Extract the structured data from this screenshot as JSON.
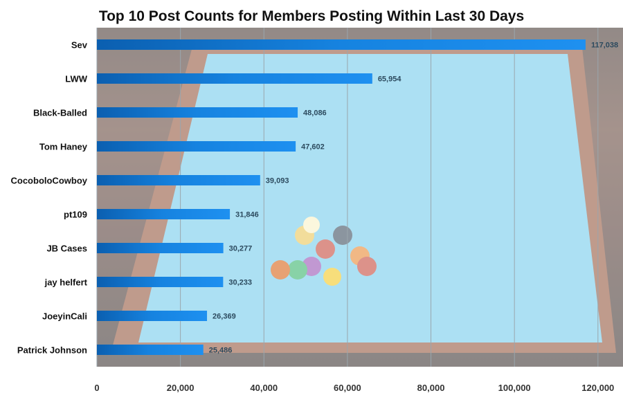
{
  "chart_data": {
    "type": "bar",
    "orientation": "horizontal",
    "title": "Top 10 Post Counts for Members Posting Within Last 30 Days",
    "categories": [
      "Sev",
      "LWW",
      "Black-Balled",
      "Tom Haney",
      "CocoboloCowboy",
      "pt109",
      "JB Cases",
      "jay helfert",
      "JoeyinCali",
      "Patrick Johnson"
    ],
    "values": [
      117038,
      65954,
      48086,
      47602,
      39093,
      31846,
      30277,
      30233,
      26369,
      25486
    ],
    "value_labels": [
      "117,038",
      "65,954",
      "48,086",
      "47,602",
      "39,093",
      "31,846",
      "30,277",
      "30,233",
      "26,369",
      "25,486"
    ],
    "x_ticks": [
      "0",
      "20,000",
      "40,000",
      "60,000",
      "80,000",
      "100,000",
      "120,000"
    ],
    "xlim": [
      0,
      126000
    ],
    "grid": true,
    "colors": {
      "bar": "#1e90f0",
      "bar_dark": "#0b5fb0",
      "grid": "#9aa6ad",
      "felt": "#7fd0ee"
    }
  }
}
